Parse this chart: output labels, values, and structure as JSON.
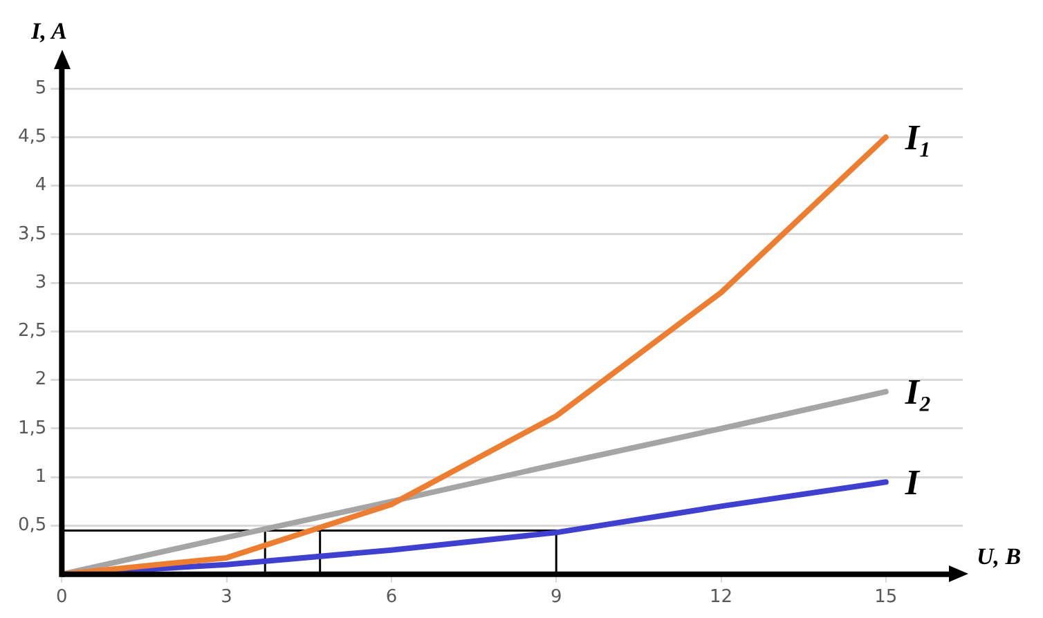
{
  "chart_data": {
    "type": "line",
    "xlabel": "U, B",
    "ylabel": "I, A",
    "x": [
      0,
      3,
      6,
      9,
      12,
      15
    ],
    "xlim": [
      0,
      16.4
    ],
    "xticks": [
      0,
      3,
      6,
      9,
      12,
      15
    ],
    "ylim": [
      0,
      5.2
    ],
    "yticks": [
      {
        "value": 0.5,
        "label": "0,5"
      },
      1,
      {
        "value": 1.5,
        "label": "1,5"
      },
      2,
      {
        "value": 2.5,
        "label": "2,5"
      },
      3,
      {
        "value": 3.5,
        "label": "3,5"
      },
      4,
      {
        "value": 4.5,
        "label": "4,5"
      },
      5
    ],
    "grid": "y",
    "legend": false,
    "marker": "none",
    "line_style": "solid",
    "series": [
      {
        "name": "I₁",
        "color": "#ed7d31",
        "values": [
          0,
          0.17,
          0.72,
          1.63,
          2.9,
          4.5
        ]
      },
      {
        "name": "I₂",
        "color": "#a5a5a5",
        "values": [
          0,
          0.38,
          0.75,
          1.13,
          1.5,
          1.88
        ]
      },
      {
        "name": "I",
        "color": "#4040d0",
        "values": [
          0,
          0.1,
          0.25,
          0.43,
          0.7,
          0.95
        ]
      },
      {
        "color": "#000000",
        "x": [
          0,
          9,
          9
        ],
        "values": [
          0.45,
          0.45,
          0
        ]
      },
      {
        "color": "#000000",
        "x": [
          3.7,
          3.7
        ],
        "values": [
          0,
          0.45
        ]
      },
      {
        "color": "#000000",
        "x": [
          4.7,
          4.7
        ],
        "values": [
          0,
          0.45
        ]
      }
    ]
  }
}
